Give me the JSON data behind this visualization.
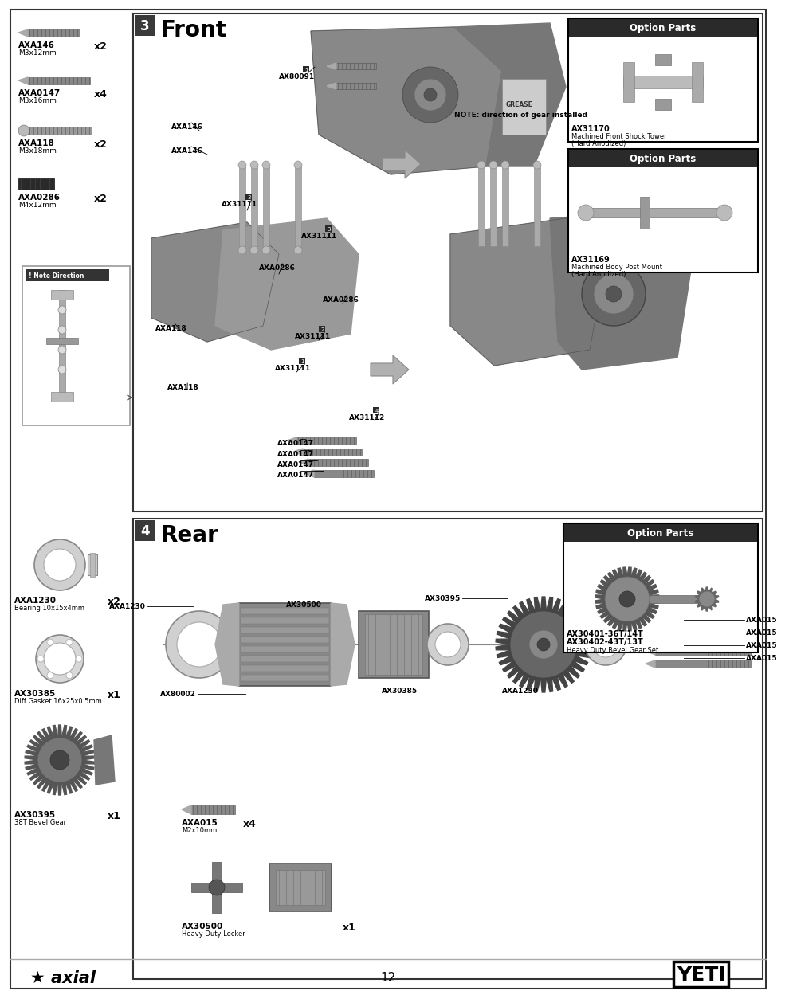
{
  "page_num": "12",
  "bg_color": "#ffffff",
  "section3_title": "Front",
  "section4_title": "Rear",
  "section3_num": "3",
  "section4_num": "4",
  "left_parts_front": [
    {
      "part_id": "AXA146",
      "spec": "M3x12mm",
      "qty": "x2"
    },
    {
      "part_id": "AXA0147",
      "spec": "M3x16mm",
      "qty": "x4"
    },
    {
      "part_id": "AXA118",
      "spec": "M3x18mm",
      "qty": "x2"
    },
    {
      "part_id": "AXA0286",
      "spec": "M4x12mm",
      "qty": "x2"
    }
  ],
  "left_parts_rear": [
    {
      "part_id": "AXA1230",
      "spec": "Bearing 10x15x4mm",
      "qty": "x2"
    },
    {
      "part_id": "AX30385",
      "spec": "Diff Gasket 16x25x0.5mm",
      "qty": "x1"
    },
    {
      "part_id": "AX30395",
      "spec": "38T Bevel Gear",
      "qty": "x1"
    }
  ],
  "option_parts_front_1": {
    "part_id": "AX31170",
    "desc1": "Machined Front Shock Tower",
    "desc2": "(Hard Anodized)"
  },
  "option_parts_front_2": {
    "part_id": "AX31169",
    "desc1": "Machined Body Post Mount",
    "desc2": "(Hard Anodized)"
  },
  "option_parts_rear": {
    "part_id1": "AX30401-36T/14T",
    "part_id2": "AX30402-43T/13T",
    "desc": "Heavy Duty Bevel Gear Set"
  },
  "rear_bottom_parts": [
    {
      "part_id": "AXA015",
      "spec": "M2x10mm",
      "qty": "x4"
    },
    {
      "part_id": "AX30500",
      "spec": "Heavy Duty Locker",
      "qty": "x1"
    }
  ],
  "front_note": "NOTE: direction of gear installed",
  "front_callout_labels": [
    {
      "label": "AX80091",
      "num": "1"
    },
    {
      "label": "AXA146",
      "num": ""
    },
    {
      "label": "AXA146",
      "num": ""
    },
    {
      "label": "AX31111",
      "num": "3"
    },
    {
      "label": "AX31111",
      "num": "3"
    },
    {
      "label": "AXA0286",
      "num": ""
    },
    {
      "label": "AXA0286",
      "num": ""
    },
    {
      "label": "AXA118",
      "num": ""
    },
    {
      "label": "AXA118",
      "num": ""
    },
    {
      "label": "AX31111",
      "num": "2"
    },
    {
      "label": "AX31111",
      "num": "1"
    },
    {
      "label": "AX31112",
      "num": "4"
    },
    {
      "label": "AXA0147",
      "num": ""
    },
    {
      "label": "AXA0147",
      "num": ""
    },
    {
      "label": "AXA0147",
      "num": ""
    },
    {
      "label": "AXA0147",
      "num": ""
    }
  ],
  "rear_callout_labels": [
    "AXA1230",
    "AX80002",
    "AX30500",
    "AX30395",
    "AX30385",
    "AXA1230",
    "AXA015",
    "AXA015",
    "AXA015",
    "AXA015"
  ],
  "option_title_bg": "#2a2a2a",
  "num_badge_bg": "#3a3a3a",
  "section_border": "#333333",
  "outer_border": "#333333",
  "note_dir_border": "#888888",
  "gray_light": "#cccccc",
  "gray_mid": "#999999",
  "gray_dark": "#666666",
  "gray_darkest": "#444444",
  "arrow_gray": "#b0b0b0"
}
